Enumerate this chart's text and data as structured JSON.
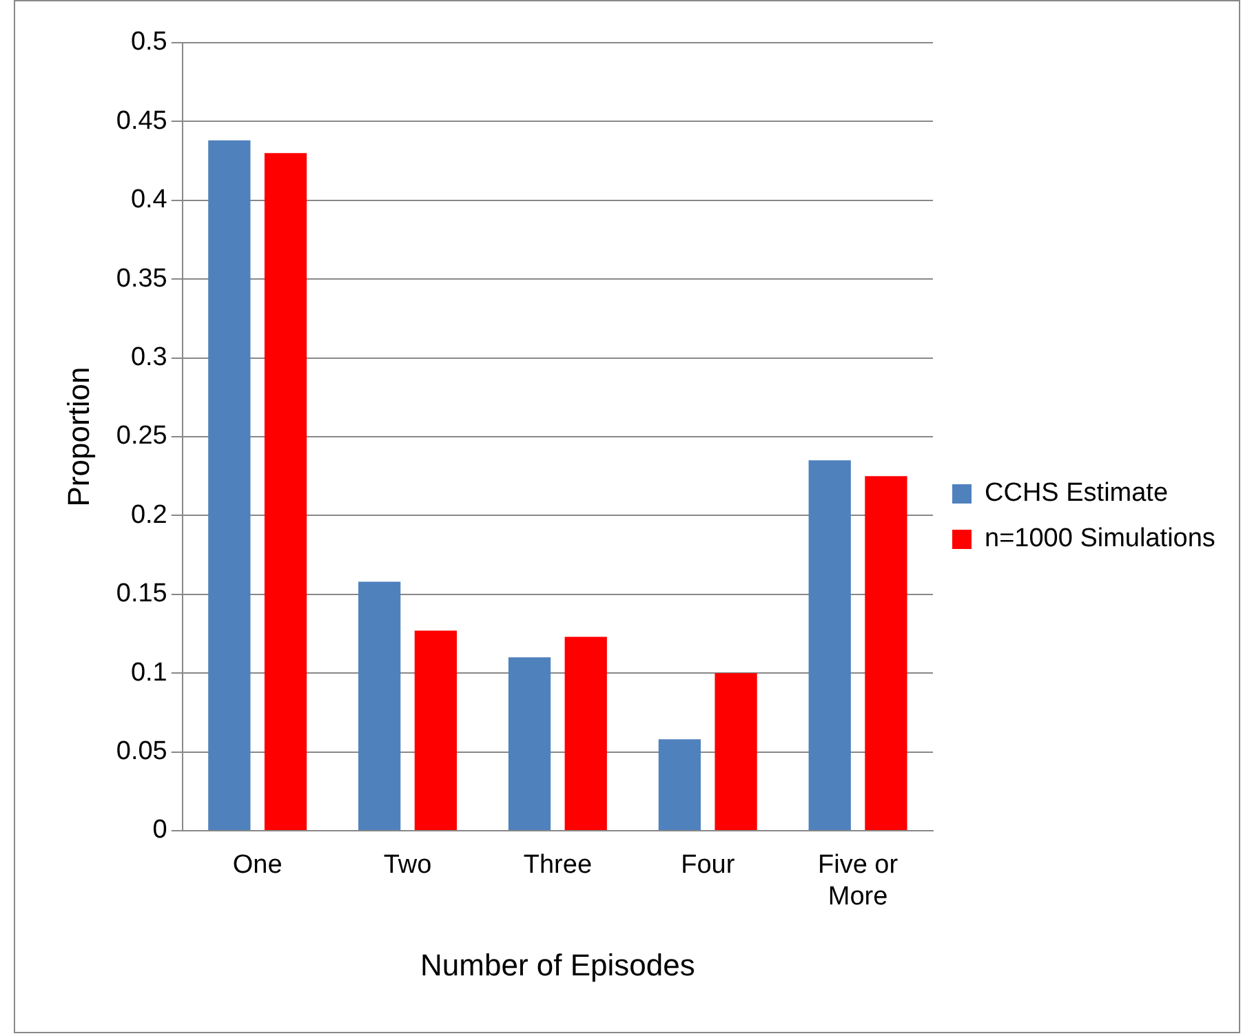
{
  "chart_data": {
    "type": "bar",
    "xlabel": "Number of Episodes",
    "ylabel": "Proportion",
    "categories": [
      "One",
      "Two",
      "Three",
      "Four",
      "Five or More"
    ],
    "series": [
      {
        "name": "CCHS Estimate",
        "color": "#4f81bd",
        "values": [
          0.438,
          0.158,
          0.11,
          0.058,
          0.235
        ]
      },
      {
        "name": "n=1000 Simulations",
        "color": "#ff0000",
        "values": [
          0.43,
          0.127,
          0.123,
          0.1,
          0.225
        ]
      }
    ],
    "ylim": [
      0,
      0.5
    ],
    "yticks": [
      0,
      0.05,
      0.1,
      0.15,
      0.2,
      0.25,
      0.3,
      0.35,
      0.4,
      0.45,
      0.5
    ],
    "grid": "y",
    "legend": "right"
  }
}
